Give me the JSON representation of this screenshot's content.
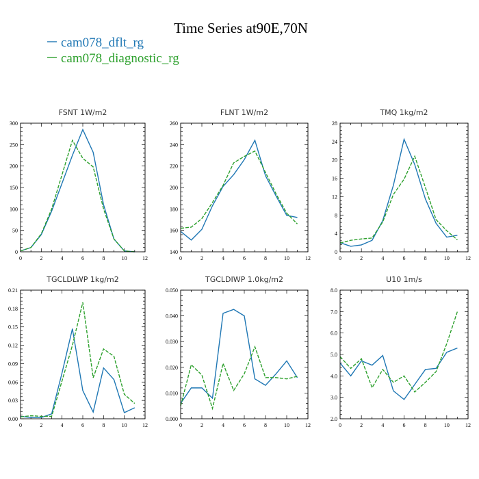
{
  "figure_title": "Time Series at90E,70N",
  "legend": [
    {
      "name": "cam078_dflt_rg",
      "color": "#1f77b4",
      "dash": "solid"
    },
    {
      "name": "cam078_diagnostic_rg",
      "color": "#2ca02c",
      "dash": "dashed"
    }
  ],
  "chart_data": [
    {
      "type": "line",
      "title": "FSNT   1W/m2",
      "x": [
        0,
        1,
        2,
        3,
        4,
        5,
        6,
        7,
        8,
        9,
        10,
        11
      ],
      "xlim": [
        0,
        12
      ],
      "xticks": [
        0,
        2,
        4,
        6,
        8,
        10,
        12
      ],
      "xticklabels": [
        "0",
        "2",
        "4",
        "6",
        "8",
        "10",
        "12"
      ],
      "ylim": [
        0,
        300
      ],
      "yticks": [
        0,
        50,
        100,
        150,
        200,
        250,
        300
      ],
      "yticklabels": [
        "0",
        "50",
        "100",
        "150",
        "200",
        "250",
        "300"
      ],
      "series": [
        {
          "name": "cam078_dflt_rg",
          "values": [
            2,
            10,
            40,
            95,
            160,
            225,
            285,
            232,
            110,
            30,
            2,
            0
          ]
        },
        {
          "name": "cam078_diagnostic_rg",
          "values": [
            2,
            10,
            42,
            100,
            180,
            260,
            218,
            198,
            100,
            30,
            2,
            0
          ]
        }
      ]
    },
    {
      "type": "line",
      "title": "FLNT   1W/m2",
      "x": [
        0,
        1,
        2,
        3,
        4,
        5,
        6,
        7,
        8,
        9,
        10,
        11
      ],
      "xlim": [
        0,
        12
      ],
      "xticks": [
        0,
        2,
        4,
        6,
        8,
        10,
        12
      ],
      "xticklabels": [
        "0",
        "2",
        "4",
        "6",
        "8",
        "10",
        "12"
      ],
      "ylim": [
        140,
        260
      ],
      "yticks": [
        140,
        160,
        180,
        200,
        220,
        240,
        260
      ],
      "yticklabels": [
        "140",
        "160",
        "180",
        "200",
        "220",
        "240",
        "260"
      ],
      "series": [
        {
          "name": "cam078_dflt_rg",
          "values": [
            159,
            151,
            161,
            183,
            201,
            212,
            226,
            244,
            211,
            192,
            174,
            172
          ]
        },
        {
          "name": "cam078_diagnostic_rg",
          "values": [
            162,
            163,
            171,
            186,
            202,
            223,
            229,
            234,
            214,
            194,
            176,
            166
          ]
        }
      ]
    },
    {
      "type": "line",
      "title": "TMQ   1kg/m2",
      "x": [
        0,
        1,
        2,
        3,
        4,
        5,
        6,
        7,
        8,
        9,
        10,
        11
      ],
      "xlim": [
        0,
        12
      ],
      "xticks": [
        0,
        2,
        4,
        6,
        8,
        10,
        12
      ],
      "xticklabels": [
        "0",
        "2",
        "4",
        "6",
        "8",
        "10",
        "12"
      ],
      "ylim": [
        0,
        28
      ],
      "yticks": [
        0,
        4,
        8,
        12,
        16,
        20,
        24,
        28
      ],
      "yticklabels": [
        "0",
        "4",
        "8",
        "12",
        "16",
        "20",
        "24",
        "28"
      ],
      "series": [
        {
          "name": "cam078_dflt_rg",
          "values": [
            2.0,
            1.2,
            1.5,
            2.5,
            6.8,
            14.5,
            24.5,
            19.0,
            11.5,
            6.2,
            3.2,
            3.6
          ]
        },
        {
          "name": "cam078_diagnostic_rg",
          "values": [
            1.9,
            2.5,
            2.8,
            3.0,
            6.5,
            12.5,
            15.8,
            20.8,
            14.0,
            7.0,
            4.6,
            2.6
          ]
        }
      ]
    },
    {
      "type": "line",
      "title": "TGCLDLWP   1kg/m2",
      "x": [
        0,
        1,
        2,
        3,
        4,
        5,
        6,
        7,
        8,
        9,
        10,
        11
      ],
      "xlim": [
        0,
        12
      ],
      "xticks": [
        0,
        2,
        4,
        6,
        8,
        10,
        12
      ],
      "xticklabels": [
        "0",
        "2",
        "4",
        "6",
        "8",
        "10",
        "12"
      ],
      "ylim": [
        0,
        0.21
      ],
      "yticks": [
        0,
        0.03,
        0.06,
        0.09,
        0.12,
        0.15,
        0.18,
        0.21
      ],
      "yticklabels": [
        "0.00",
        "0.03",
        "0.06",
        "0.09",
        "0.12",
        "0.15",
        "0.18",
        "0.21"
      ],
      "series": [
        {
          "name": "cam078_dflt_rg",
          "values": [
            0.004,
            0.002,
            0.002,
            0.008,
            0.075,
            0.147,
            0.046,
            0.011,
            0.083,
            0.064,
            0.01,
            0.018
          ]
        },
        {
          "name": "cam078_diagnostic_rg",
          "values": [
            0.003,
            0.005,
            0.004,
            0.004,
            0.062,
            0.12,
            0.19,
            0.067,
            0.114,
            0.102,
            0.04,
            0.025
          ]
        }
      ]
    },
    {
      "type": "line",
      "title": "TGCLDIWP   1.0kg/m2",
      "x": [
        0,
        1,
        2,
        3,
        4,
        5,
        6,
        7,
        8,
        9,
        10,
        11
      ],
      "xlim": [
        0,
        12
      ],
      "xticks": [
        0,
        2,
        4,
        6,
        8,
        10,
        12
      ],
      "xticklabels": [
        "0",
        "2",
        "4",
        "6",
        "8",
        "10",
        "12"
      ],
      "ylim": [
        0,
        0.05
      ],
      "yticks": [
        0,
        0.01,
        0.02,
        0.03,
        0.04,
        0.05
      ],
      "yticklabels": [
        "0.000",
        "0.010",
        "0.020",
        "0.030",
        "0.040",
        "0.050"
      ],
      "series": [
        {
          "name": "cam078_dflt_rg",
          "values": [
            0.006,
            0.012,
            0.012,
            0.008,
            0.041,
            0.0425,
            0.04,
            0.0155,
            0.013,
            0.0175,
            0.0225,
            0.016
          ]
        },
        {
          "name": "cam078_diagnostic_rg",
          "values": [
            0.005,
            0.021,
            0.017,
            0.004,
            0.0215,
            0.011,
            0.0175,
            0.028,
            0.016,
            0.016,
            0.0155,
            0.0165
          ]
        }
      ]
    },
    {
      "type": "line",
      "title": "U10   1m/s",
      "x": [
        0,
        1,
        2,
        3,
        4,
        5,
        6,
        7,
        8,
        9,
        10,
        11
      ],
      "xlim": [
        0,
        12
      ],
      "xticks": [
        0,
        2,
        4,
        6,
        8,
        10,
        12
      ],
      "xticklabels": [
        "0",
        "2",
        "4",
        "6",
        "8",
        "10",
        "12"
      ],
      "ylim": [
        2,
        8
      ],
      "yticks": [
        2,
        3,
        4,
        5,
        6,
        7,
        8
      ],
      "yticklabels": [
        "2.0",
        "3.0",
        "4.0",
        "5.0",
        "6.0",
        "7.0",
        "8.0"
      ],
      "series": [
        {
          "name": "cam078_dflt_rg",
          "values": [
            4.6,
            4.0,
            4.7,
            4.5,
            4.95,
            3.3,
            2.9,
            3.6,
            4.3,
            4.35,
            5.1,
            5.3
          ]
        },
        {
          "name": "cam078_diagnostic_rg",
          "values": [
            4.9,
            4.35,
            4.8,
            3.45,
            4.3,
            3.7,
            4.0,
            3.25,
            3.7,
            4.2,
            5.5,
            7.0
          ]
        }
      ]
    }
  ]
}
